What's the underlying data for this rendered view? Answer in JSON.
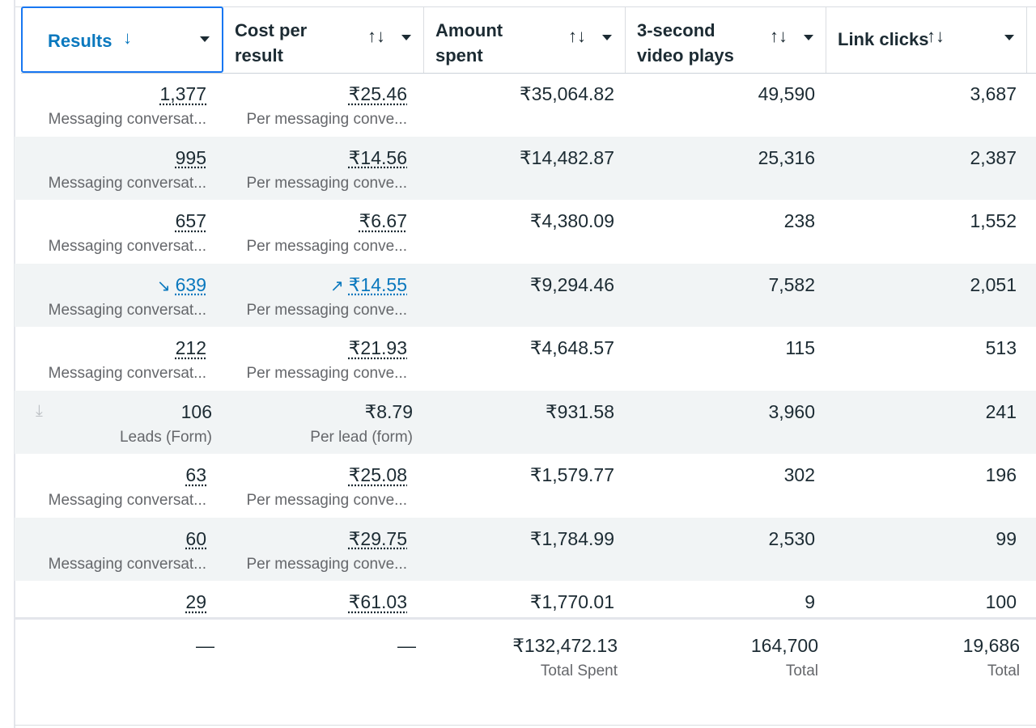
{
  "columns": [
    {
      "label": "Results",
      "sort_icon": "↓",
      "active": true
    },
    {
      "label": "Cost per result",
      "sort_icon": "↑↓"
    },
    {
      "label": "Amount spent",
      "sort_icon": "↑↓"
    },
    {
      "label": "3-second video plays",
      "sort_icon": "↑↓"
    },
    {
      "label": "Link clicks",
      "sort_icon": "↑↓"
    }
  ],
  "rows": [
    {
      "results": "1,377",
      "results_sub": "Messaging conversat...",
      "cost": "₹25.46",
      "cost_sub": "Per messaging conve...",
      "spent": "₹35,064.82",
      "plays": "49,590",
      "clicks": "3,687"
    },
    {
      "results": "995",
      "results_sub": "Messaging conversat...",
      "cost": "₹14.56",
      "cost_sub": "Per messaging conve...",
      "spent": "₹14,482.87",
      "plays": "25,316",
      "clicks": "2,387"
    },
    {
      "results": "657",
      "results_sub": "Messaging conversat...",
      "cost": "₹6.67",
      "cost_sub": "Per messaging conve...",
      "spent": "₹4,380.09",
      "plays": "238",
      "clicks": "1,552"
    },
    {
      "results": "639",
      "results_sub": "Messaging conversat...",
      "cost": "₹14.55",
      "cost_sub": "Per messaging conve...",
      "spent": "₹9,294.46",
      "plays": "7,582",
      "clicks": "2,051",
      "results_trend": "trend-down-icon",
      "cost_trend": "trend-up-icon"
    },
    {
      "results": "212",
      "results_sub": "Messaging conversat...",
      "cost": "₹21.93",
      "cost_sub": "Per messaging conve...",
      "spent": "₹4,648.57",
      "plays": "115",
      "clicks": "513"
    },
    {
      "results": "106",
      "results_sub": "Leads (Form)",
      "cost": "₹8.79",
      "cost_sub": "Per lead (form)",
      "spent": "₹931.58",
      "plays": "3,960",
      "clicks": "241",
      "icon": "download-icon"
    },
    {
      "results": "63",
      "results_sub": "Messaging conversat...",
      "cost": "₹25.08",
      "cost_sub": "Per messaging conve...",
      "spent": "₹1,579.77",
      "plays": "302",
      "clicks": "196"
    },
    {
      "results": "60",
      "results_sub": "Messaging conversat...",
      "cost": "₹29.75",
      "cost_sub": "Per messaging conve...",
      "spent": "₹1,784.99",
      "plays": "2,530",
      "clicks": "99"
    },
    {
      "results": "29",
      "results_sub": "",
      "cost": "₹61.03",
      "cost_sub": "",
      "spent": "₹1,770.01",
      "plays": "9",
      "clicks": "100"
    }
  ],
  "totals": {
    "results": "—",
    "cost": "—",
    "spent": "₹132,472.13",
    "spent_sub": "Total Spent",
    "plays": "164,700",
    "plays_sub": "Total",
    "clicks": "19,686",
    "clicks_sub": "Total"
  },
  "colors": {
    "accent": "#0a78be",
    "row_alt": "#f1f4f5",
    "muted": "#65676b"
  }
}
